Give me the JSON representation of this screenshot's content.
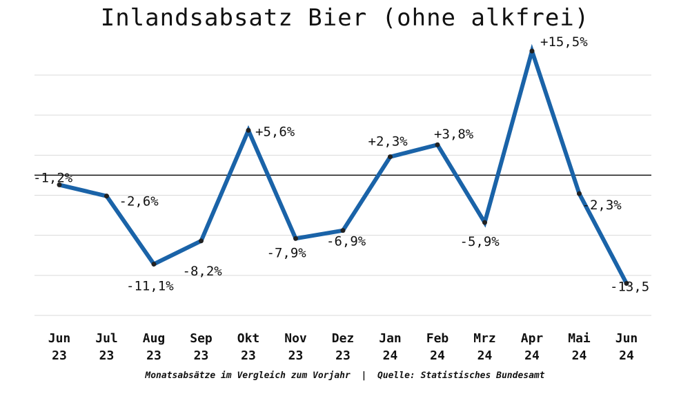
{
  "chart_data": {
    "type": "line",
    "title": "Inlandsabsatz Bier (ohne alkfrei)",
    "footer": "Monatsabsätze im Vergleich zum Vorjahr  |  Quelle: Statistisches Bundesamt",
    "categories": [
      [
        "Jun",
        "23"
      ],
      [
        "Jul",
        "23"
      ],
      [
        "Aug",
        "23"
      ],
      [
        "Sep",
        "23"
      ],
      [
        "Okt",
        "23"
      ],
      [
        "Nov",
        "23"
      ],
      [
        "Dez",
        "23"
      ],
      [
        "Jan",
        "24"
      ],
      [
        "Feb",
        "24"
      ],
      [
        "Mrz",
        "24"
      ],
      [
        "Apr",
        "24"
      ],
      [
        "Mai",
        "24"
      ],
      [
        "Jun",
        "24"
      ]
    ],
    "values": [
      -1.2,
      -2.6,
      -11.1,
      -8.2,
      5.6,
      -7.9,
      -6.9,
      2.3,
      3.8,
      -5.9,
      15.5,
      -2.3,
      -13.5
    ],
    "data_labels": [
      "-1,2%",
      "-2,6%",
      "-11,1%",
      "-8,2%",
      "+5,6%",
      "-7,9%",
      "-6,9%",
      "+2,3%",
      "+3,8%",
      "-5,9%",
      "+15,5%",
      "-2,3%",
      "-13,5"
    ],
    "ylim": [
      -17.5,
      12.5
    ],
    "grid": true,
    "zero_line": true,
    "line_color": "#1a63a8",
    "marker_color": "#222222"
  }
}
